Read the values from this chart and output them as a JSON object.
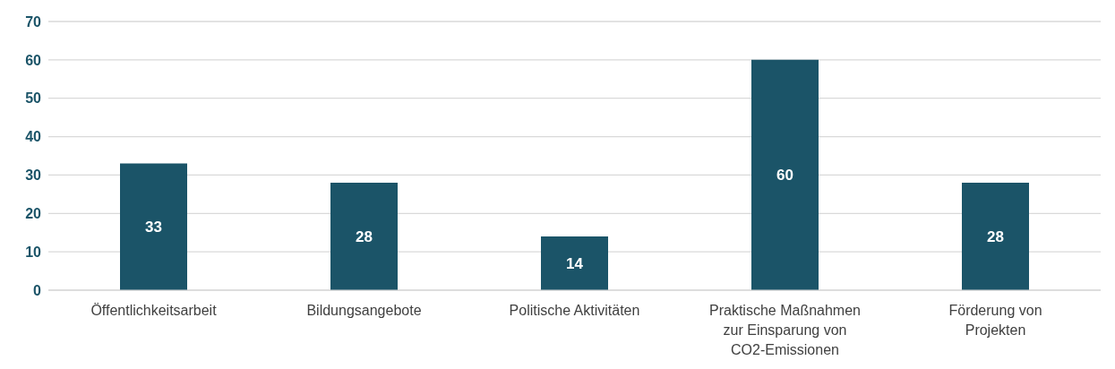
{
  "chart_data": {
    "type": "bar",
    "categories": [
      "Öffentlichkeitsarbeit",
      "Bildungsangebote",
      "Politische Aktivitäten",
      "Praktische Maßnahmen zur Einsparung von CO2-Emissionen",
      "Förderung von Projekten"
    ],
    "values": [
      33,
      28,
      14,
      60,
      28
    ],
    "color": "#1b5468",
    "ylim": [
      0,
      70
    ],
    "yticks": [
      0,
      10,
      20,
      30,
      40,
      50,
      60,
      70
    ],
    "grid": "y",
    "data_labels": true
  }
}
